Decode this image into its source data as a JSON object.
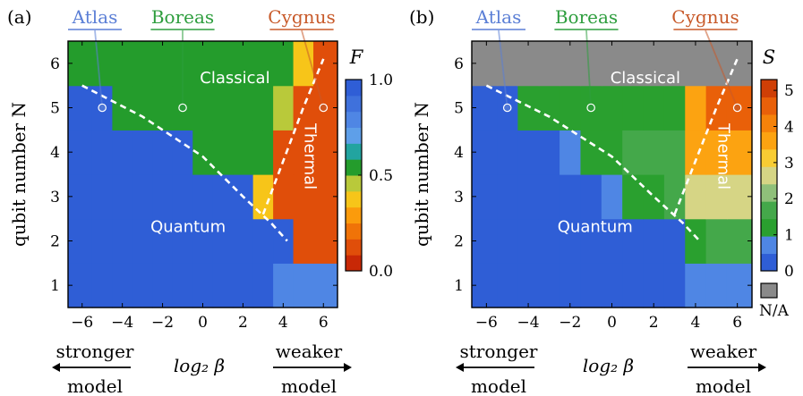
{
  "chart_data": [
    {
      "type": "heatmap",
      "panel_label": "(a)",
      "xlabel": "log₂ β",
      "ylabel": "qubit number N",
      "x_ticks": [
        "−6",
        "−4",
        "−2",
        "0",
        "2",
        "4",
        "6"
      ],
      "y_ticks": [
        "1",
        "2",
        "3",
        "4",
        "5",
        "6"
      ],
      "xlim": [
        -6.7,
        6.7
      ],
      "ylim": [
        0.5,
        6.5
      ],
      "colorbar": {
        "label": "F",
        "ticks": [
          "1.0",
          "0.5",
          "0.0"
        ],
        "range": [
          0,
          1
        ],
        "levels": 12,
        "colors": [
          "#c82806",
          "#e04e0a",
          "#f07308",
          "#fb9b0c",
          "#f7c519",
          "#b9c93a",
          "#249c2c",
          "#22a4a0",
          "#5e9fe9",
          "#4f86e4",
          "#3f71dc",
          "#2f5ed6"
        ]
      },
      "x_centers": [
        -6,
        -5,
        -4,
        -3,
        -2,
        -1,
        0,
        1,
        2,
        3,
        4,
        5,
        6
      ],
      "n_values": [
        1,
        2,
        3,
        4,
        5,
        6
      ],
      "regions": [
        "Quantum",
        "Classical",
        "Thermal"
      ],
      "top_labels": [
        {
          "name": "Atlas",
          "color": "#5b7fd6",
          "point": [
            -5,
            5
          ]
        },
        {
          "name": "Boreas",
          "color": "#2e9e3e",
          "point": [
            -1,
            5
          ]
        },
        {
          "name": "Cygnus",
          "color": "#c85a2a",
          "point": [
            6,
            5
          ]
        }
      ],
      "bottom_left": [
        "stronger",
        "model"
      ],
      "bottom_right": [
        "weaker",
        "model"
      ],
      "boundary_left": [
        [
          -6,
          5.5
        ],
        [
          -3,
          4.8
        ],
        [
          0,
          3.9
        ],
        [
          2,
          3.0
        ],
        [
          3.4,
          2.4
        ],
        [
          4.2,
          2.0
        ]
      ],
      "boundary_right": [
        [
          3.0,
          2.6
        ],
        [
          4.0,
          3.8
        ],
        [
          5.0,
          5.0
        ],
        [
          6.0,
          6.1
        ]
      ],
      "values": [
        [
          1.0,
          1.0,
          1.0,
          1.0,
          1.0,
          1.0,
          1.0,
          1.0,
          1.0,
          1.0,
          0.82,
          0.82,
          0.82
        ],
        [
          1.0,
          1.0,
          1.0,
          1.0,
          1.0,
          1.0,
          1.0,
          1.0,
          1.0,
          1.0,
          0.92,
          0.12,
          0.12
        ],
        [
          1.0,
          1.0,
          1.0,
          1.0,
          1.0,
          1.0,
          1.0,
          1.0,
          0.95,
          0.34,
          0.15,
          0.15,
          0.15
        ],
        [
          1.0,
          1.0,
          1.0,
          1.0,
          1.0,
          0.95,
          0.52,
          0.5,
          0.52,
          0.52,
          0.1,
          0.1,
          0.1
        ],
        [
          1.0,
          1.0,
          0.52,
          0.52,
          0.52,
          0.52,
          0.52,
          0.52,
          0.52,
          0.52,
          0.45,
          0.1,
          0.1
        ],
        [
          0.52,
          0.52,
          0.52,
          0.52,
          0.52,
          0.52,
          0.52,
          0.52,
          0.52,
          0.52,
          0.52,
          0.35,
          0.1
        ]
      ]
    },
    {
      "type": "heatmap",
      "panel_label": "(b)",
      "xlabel": "log₂ β",
      "ylabel": "qubit number N",
      "x_ticks": [
        "−6",
        "−4",
        "−2",
        "0",
        "2",
        "4",
        "6"
      ],
      "y_ticks": [
        "1",
        "2",
        "3",
        "4",
        "5",
        "6"
      ],
      "xlim": [
        -6.7,
        6.7
      ],
      "ylim": [
        0.5,
        6.5
      ],
      "colorbar": {
        "label": "S",
        "ticks": [
          "5",
          "4",
          "3",
          "2",
          "1",
          "0"
        ],
        "range": [
          0,
          5.3
        ],
        "na_label": "N/A",
        "na_color": "#8a8a8a",
        "colors": [
          "#2f5ed6",
          "#4f86e4",
          "#2aa02f",
          "#44a84a",
          "#8fc07a",
          "#d6d585",
          "#f8cc33",
          "#fca311",
          "#f5820a",
          "#e96009",
          "#cf3f06"
        ]
      },
      "x_centers": [
        -6,
        -5,
        -4,
        -3,
        -2,
        -1,
        0,
        1,
        2,
        3,
        4,
        5,
        6
      ],
      "n_values": [
        1,
        2,
        3,
        4,
        5,
        6
      ],
      "regions": [
        "Quantum",
        "Classical",
        "Thermal"
      ],
      "top_labels": [
        {
          "name": "Atlas",
          "color": "#5b7fd6",
          "point": [
            -5,
            5
          ]
        },
        {
          "name": "Boreas",
          "color": "#2e9e3e",
          "point": [
            -1,
            5
          ]
        },
        {
          "name": "Cygnus",
          "color": "#c85a2a",
          "point": [
            6,
            5
          ]
        }
      ],
      "bottom_left": [
        "stronger",
        "model"
      ],
      "bottom_right": [
        "weaker",
        "model"
      ],
      "boundary_left": [
        [
          -6,
          5.5
        ],
        [
          -3,
          4.8
        ],
        [
          0,
          3.9
        ],
        [
          2,
          3.0
        ],
        [
          3.4,
          2.4
        ],
        [
          4.2,
          2.0
        ]
      ],
      "boundary_right": [
        [
          3.0,
          2.6
        ],
        [
          4.0,
          3.8
        ],
        [
          5.0,
          5.0
        ],
        [
          6.0,
          6.1
        ]
      ],
      "values": [
        [
          0.1,
          0.1,
          0.1,
          0.1,
          0.1,
          0.1,
          0.1,
          0.1,
          0.1,
          0.1,
          0.5,
          0.5,
          0.5
        ],
        [
          0.1,
          0.1,
          0.1,
          0.1,
          0.1,
          0.1,
          0.1,
          0.1,
          0.1,
          0.1,
          1.4,
          1.6,
          1.6
        ],
        [
          0.1,
          0.1,
          0.1,
          0.1,
          0.2,
          0.3,
          0.6,
          1.0,
          1.2,
          1.6,
          2.6,
          2.6,
          2.6
        ],
        [
          0.1,
          0.1,
          0.1,
          0.3,
          0.5,
          1.2,
          1.3,
          1.6,
          1.7,
          1.8,
          3.8,
          3.8,
          3.8
        ],
        [
          0.1,
          0.1,
          1.0,
          1.0,
          1.0,
          1.0,
          1.0,
          1.0,
          1.0,
          1.0,
          3.8,
          4.5,
          4.5
        ],
        [
          null,
          null,
          null,
          null,
          null,
          null,
          null,
          null,
          null,
          null,
          null,
          null,
          null
        ]
      ]
    }
  ]
}
